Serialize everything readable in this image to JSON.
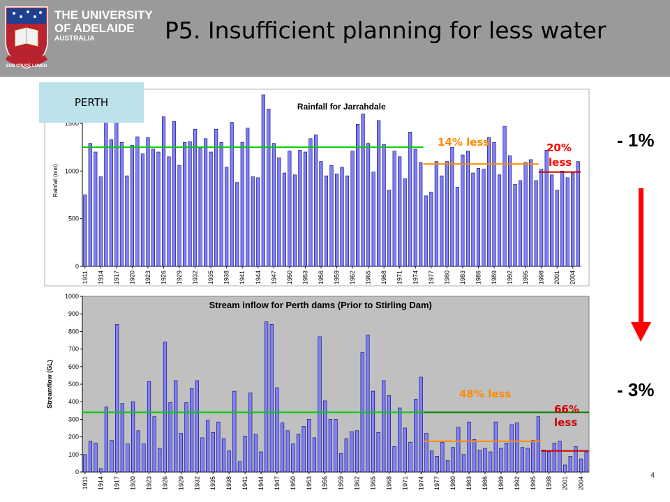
{
  "header": {
    "university_line1": "THE UNIVERSITY",
    "university_line2": "OF ADELAIDE",
    "university_line3": "AUSTRALIA",
    "motto": "SUB CRUCE LUMEN",
    "slide_title": "P5. Insufficient planning for less water"
  },
  "city_label": "PERTH",
  "side_labels": {
    "top": "- 1%",
    "bottom": "- 3%"
  },
  "slide_number": "4",
  "colors": {
    "bar": "#8080ff",
    "green_line": "#00cc00",
    "orange_line": "#ff8c00",
    "red_line": "#cc0000",
    "arrow": "#ff0000"
  },
  "chart_data": [
    {
      "type": "bar",
      "title": "Rainfall for Jarrahdale",
      "ylabel": "Rainfall (mm)",
      "xlabel": "",
      "ylim": [
        0,
        1800
      ],
      "yticks": [
        0,
        500,
        1000,
        1500
      ],
      "x_start": 1911,
      "x_end": 2005,
      "xtick_labels": [
        "1911",
        "1914",
        "1917",
        "1920",
        "1923",
        "1926",
        "1929",
        "1932",
        "1935",
        "1938",
        "1941",
        "1944",
        "1947",
        "1950",
        "1953",
        "1956",
        "1959",
        "1962",
        "1965",
        "1968",
        "1971",
        "1974",
        "1977",
        "1980",
        "1983",
        "1986",
        "1989",
        "1992",
        "1995",
        "1998",
        "2001",
        "2004"
      ],
      "values": [
        750,
        1290,
        1200,
        940,
        1700,
        1330,
        1800,
        1300,
        950,
        1270,
        1360,
        1180,
        1350,
        1230,
        1200,
        1570,
        1150,
        1520,
        1060,
        1300,
        1310,
        1440,
        1240,
        1340,
        1200,
        1440,
        1300,
        1040,
        1510,
        880,
        1300,
        1450,
        940,
        930,
        1840,
        1650,
        1290,
        1140,
        980,
        1210,
        960,
        1220,
        1200,
        1340,
        1380,
        1100,
        950,
        1060,
        970,
        1040,
        950,
        1210,
        1490,
        1600,
        1290,
        990,
        1530,
        1280,
        800,
        1210,
        1150,
        920,
        1410,
        1230,
        1090,
        740,
        780,
        1100,
        950,
        1100,
        1250,
        830,
        1170,
        1210,
        980,
        1030,
        1020,
        1350,
        1300,
        960,
        1470,
        1160,
        860,
        900,
        1090,
        1120,
        900,
        1020,
        1220,
        960,
        800,
        1000,
        930,
        980,
        1100
      ],
      "mean_lines": [
        {
          "from": 1911,
          "to": 1975,
          "value": 1250,
          "color": "#00cc00"
        },
        {
          "from": 1976,
          "to": 1997,
          "value": 1075,
          "color": "#ff8c00"
        },
        {
          "from": 1998,
          "to": 2005,
          "value": 990,
          "color": "#cc0000"
        }
      ],
      "annotations": [
        {
          "text": "14% less",
          "color": "#ff8c00"
        },
        {
          "text": "20%",
          "color": "#ff0000"
        },
        {
          "text": "less",
          "color": "#ff0000"
        }
      ]
    },
    {
      "type": "bar",
      "title": "Stream inflow for Perth dams  (Prior to Stirling Dam)",
      "ylabel": "Streamflow (GL)",
      "xlabel": "",
      "ylim": [
        0,
        1000
      ],
      "yticks": [
        0,
        100,
        200,
        300,
        400,
        500,
        600,
        700,
        800,
        900,
        1000
      ],
      "x_start": 1911,
      "x_end": 2005,
      "xtick_labels": [
        "1911",
        "1914",
        "1917",
        "1920",
        "1923",
        "1926",
        "1929",
        "1932",
        "1935",
        "1938",
        "1941",
        "1944",
        "1947",
        "1950",
        "1953",
        "1956",
        "1959",
        "1962",
        "1965",
        "1968",
        "1971",
        "1974",
        "1977",
        "1980",
        "1983",
        "1986",
        "1989",
        "1992",
        "1995",
        "1998",
        "2001",
        "2004"
      ],
      "values": [
        100,
        175,
        165,
        20,
        370,
        180,
        840,
        390,
        160,
        400,
        235,
        160,
        515,
        315,
        135,
        740,
        395,
        520,
        220,
        395,
        475,
        520,
        195,
        295,
        225,
        285,
        190,
        120,
        460,
        60,
        205,
        450,
        215,
        115,
        855,
        840,
        480,
        280,
        235,
        160,
        215,
        260,
        300,
        195,
        770,
        405,
        300,
        300,
        105,
        190,
        230,
        235,
        680,
        780,
        460,
        225,
        520,
        435,
        145,
        365,
        250,
        170,
        415,
        540,
        220,
        120,
        90,
        170,
        65,
        140,
        255,
        100,
        285,
        185,
        125,
        135,
        115,
        285,
        135,
        165,
        270,
        280,
        140,
        135,
        180,
        315,
        125,
        115,
        165,
        175,
        40,
        90,
        145,
        75,
        115
      ],
      "mean_lines": [
        {
          "from": 1911,
          "to": 1974,
          "value": 340,
          "color": "#00cc00"
        },
        {
          "from": 1975,
          "to": 2005,
          "value": 340,
          "color": "#008000"
        },
        {
          "from": 1975,
          "to": 1996,
          "value": 175,
          "color": "#ff8c00"
        },
        {
          "from": 1997,
          "to": 2005,
          "value": 120,
          "color": "#cc0000"
        }
      ],
      "annotations": [
        {
          "text": "48% less",
          "color": "#ff8c00"
        },
        {
          "text": "66%",
          "color": "#cc0000"
        },
        {
          "text": "less",
          "color": "#cc0000"
        }
      ]
    }
  ]
}
